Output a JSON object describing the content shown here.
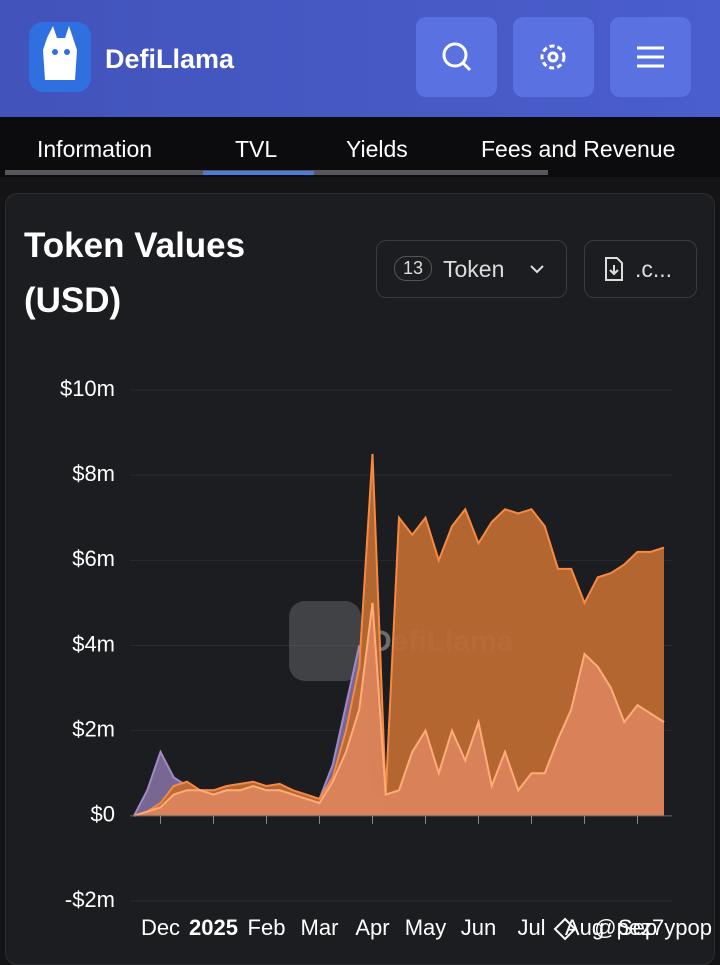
{
  "header": {
    "brand": "DefiLlama"
  },
  "tabs": [
    "Information",
    "TVL",
    "Yields",
    "Fees and Revenue"
  ],
  "panel": {
    "title": "Token Values (USD)",
    "token_count": "13",
    "token_button": "Token",
    "download_button": ".c..."
  },
  "watermark": "DefiLlama",
  "overlay": "@pez7ypop",
  "chart_data": {
    "type": "area",
    "stacked": false,
    "grid": true,
    "categories": [
      null,
      null,
      "Dec",
      null,
      null,
      null,
      "2025",
      null,
      null,
      null,
      "Feb",
      null,
      null,
      null,
      "Mar",
      null,
      null,
      null,
      "Apr",
      null,
      null,
      null,
      "May",
      null,
      null,
      null,
      "Jun",
      null,
      null,
      null,
      "Jul",
      null,
      null,
      null,
      "Aug",
      null,
      null,
      null,
      "Sep",
      null,
      null
    ],
    "ylim": [
      -2,
      10
    ],
    "yticks": [
      {
        "value": -2,
        "label": "-$2m"
      },
      {
        "value": 0,
        "label": "$0"
      },
      {
        "value": 2,
        "label": "$2m"
      },
      {
        "value": 4,
        "label": "$4m"
      },
      {
        "value": 6,
        "label": "$6m"
      },
      {
        "value": 8,
        "label": "$8m"
      },
      {
        "value": 10,
        "label": "$10m"
      }
    ],
    "series": [
      {
        "color": "#7d6a9a",
        "values": [
          0,
          0.6,
          1.5,
          0.9,
          0.7,
          0.6,
          0.6,
          0.6,
          0.6,
          0.6,
          0.6,
          0.6,
          0.5,
          0.4,
          0.4,
          1.2,
          2.6,
          4.0,
          0.4,
          0.4,
          null,
          null,
          null,
          null,
          null,
          null,
          null,
          null,
          null,
          null,
          null,
          null,
          null,
          null,
          null,
          null,
          null,
          null,
          null,
          null,
          null
        ]
      },
      {
        "color": "#bd6a33",
        "values": [
          0,
          0.1,
          0.3,
          0.7,
          0.8,
          0.6,
          0.6,
          0.7,
          0.75,
          0.8,
          0.7,
          0.75,
          0.6,
          0.5,
          0.4,
          0.9,
          2.0,
          3.5,
          8.5,
          0.5,
          7.0,
          6.6,
          7.0,
          6.0,
          6.8,
          7.2,
          6.4,
          6.9,
          7.2,
          7.1,
          7.2,
          6.8,
          5.8,
          5.8,
          5.0,
          5.6,
          5.7,
          5.9,
          6.2,
          6.2,
          6.3
        ]
      },
      {
        "color": "#db845c",
        "values": [
          0,
          0.1,
          0.2,
          0.5,
          0.6,
          0.6,
          0.5,
          0.6,
          0.6,
          0.7,
          0.6,
          0.6,
          0.5,
          0.4,
          0.3,
          0.8,
          1.5,
          2.5,
          5.0,
          0.5,
          0.6,
          1.5,
          2.0,
          1.0,
          2.0,
          1.3,
          2.2,
          0.7,
          1.5,
          0.6,
          1.0,
          1.0,
          1.8,
          2.5,
          3.8,
          3.5,
          3.0,
          2.2,
          2.6,
          2.4,
          2.2
        ]
      }
    ]
  }
}
